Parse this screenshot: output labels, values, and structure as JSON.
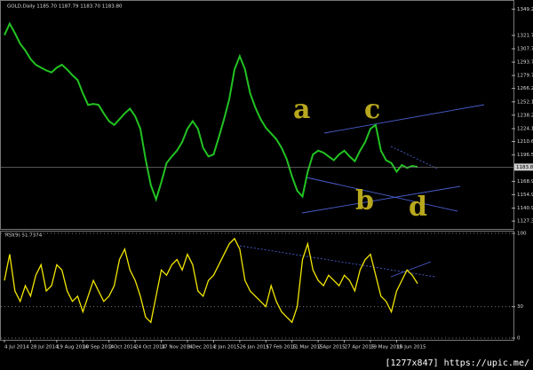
{
  "chart_data": [
    {
      "type": "line",
      "title": "GOLD,Daily  1185.70 1187.79 1183.70 1183.80",
      "color": "#22c322",
      "categories": [
        "4 Jul 2014",
        null,
        null,
        null,
        null,
        "28 Jul 2014",
        null,
        null,
        null,
        null,
        "19 Aug 2014",
        null,
        null,
        null,
        null,
        "10 Sep 2014",
        null,
        null,
        null,
        null,
        "2 Oct 2014",
        null,
        null,
        null,
        null,
        "24 Oct 2014",
        null,
        null,
        null,
        null,
        "17 Nov 2014",
        null,
        null,
        null,
        null,
        "9 Dec 2014",
        null,
        null,
        null,
        null,
        "2 Jan 2015",
        null,
        null,
        null,
        null,
        "26 Jan 2015",
        null,
        null,
        null,
        null,
        "17 Feb 2015",
        null,
        null,
        null,
        null,
        "11 Mar 2015",
        null,
        null,
        null,
        null,
        "2 Apr 2015",
        null,
        null,
        null,
        null,
        "27 Apr 2015",
        null,
        null,
        null,
        null,
        "19 May 2015",
        null,
        null,
        null,
        null,
        "10 Jun 2015",
        null,
        null,
        null,
        null
      ],
      "values": [
        1322,
        1334,
        1324,
        1313,
        1306,
        1297,
        1291,
        1288,
        1285,
        1283,
        1288,
        1291,
        1286,
        1280,
        1275,
        1261,
        1249,
        1250,
        1249,
        1240,
        1232,
        1228,
        1234,
        1240,
        1245,
        1237,
        1224,
        1192,
        1165,
        1150,
        1168,
        1188,
        1195,
        1201,
        1210,
        1224,
        1232,
        1224,
        1204,
        1195,
        1197,
        1215,
        1234,
        1255,
        1286,
        1300,
        1286,
        1261,
        1246,
        1234,
        1225,
        1219,
        1213,
        1204,
        1192,
        1174,
        1159,
        1153,
        1179,
        1197,
        1201,
        1199,
        1195,
        1191,
        1197,
        1201,
        1195,
        1190,
        1201,
        1210,
        1224,
        1228,
        1201,
        1191,
        1188,
        1179,
        1186,
        1183,
        1185,
        1184
      ],
      "current_price": {
        "value": 1183.8,
        "label": "1183.80"
      },
      "ylim": [
        1120,
        1356
      ],
      "yticks": [
        {
          "value": 1349.2,
          "label": "1349.20"
        },
        {
          "value": 1321.7,
          "label": "1321.70"
        },
        {
          "value": 1307.7,
          "label": "1307.70"
        },
        {
          "value": 1293.7,
          "label": "1293.70"
        },
        {
          "value": 1279.7,
          "label": "1279.70"
        },
        {
          "value": 1266.2,
          "label": "1266.20"
        },
        {
          "value": 1252.1,
          "label": "1252.10"
        },
        {
          "value": 1238.2,
          "label": "1238.20"
        },
        {
          "value": 1224.1,
          "label": "1224.10"
        },
        {
          "value": 1210.6,
          "label": "1210.60"
        },
        {
          "value": 1196.5,
          "label": "1196.50"
        },
        {
          "value": 1168.9,
          "label": "1168.90"
        },
        {
          "value": 1154.9,
          "label": "1154.90"
        },
        {
          "value": 1140.9,
          "label": "1140.90"
        },
        {
          "value": 1127.3,
          "label": "1127.30"
        }
      ],
      "annotations": [
        "a",
        "b",
        "c",
        "d"
      ]
    },
    {
      "type": "line",
      "title": "RSI(9) 51.7374",
      "color": "#f2e600",
      "values": [
        55,
        80,
        45,
        35,
        50,
        40,
        60,
        70,
        45,
        50,
        70,
        65,
        45,
        35,
        40,
        25,
        40,
        55,
        45,
        35,
        40,
        50,
        75,
        85,
        65,
        55,
        40,
        20,
        15,
        40,
        65,
        60,
        70,
        75,
        65,
        80,
        70,
        45,
        40,
        55,
        60,
        70,
        80,
        90,
        95,
        85,
        55,
        45,
        40,
        35,
        30,
        50,
        35,
        25,
        20,
        15,
        30,
        75,
        90,
        65,
        55,
        50,
        60,
        55,
        50,
        60,
        55,
        45,
        65,
        75,
        80,
        60,
        40,
        35,
        25,
        45,
        55,
        65,
        60,
        52
      ],
      "ylim": [
        0,
        100
      ],
      "yticks": [
        100,
        30,
        0
      ]
    }
  ],
  "watermark": "[1277x847] https://upic.me/"
}
